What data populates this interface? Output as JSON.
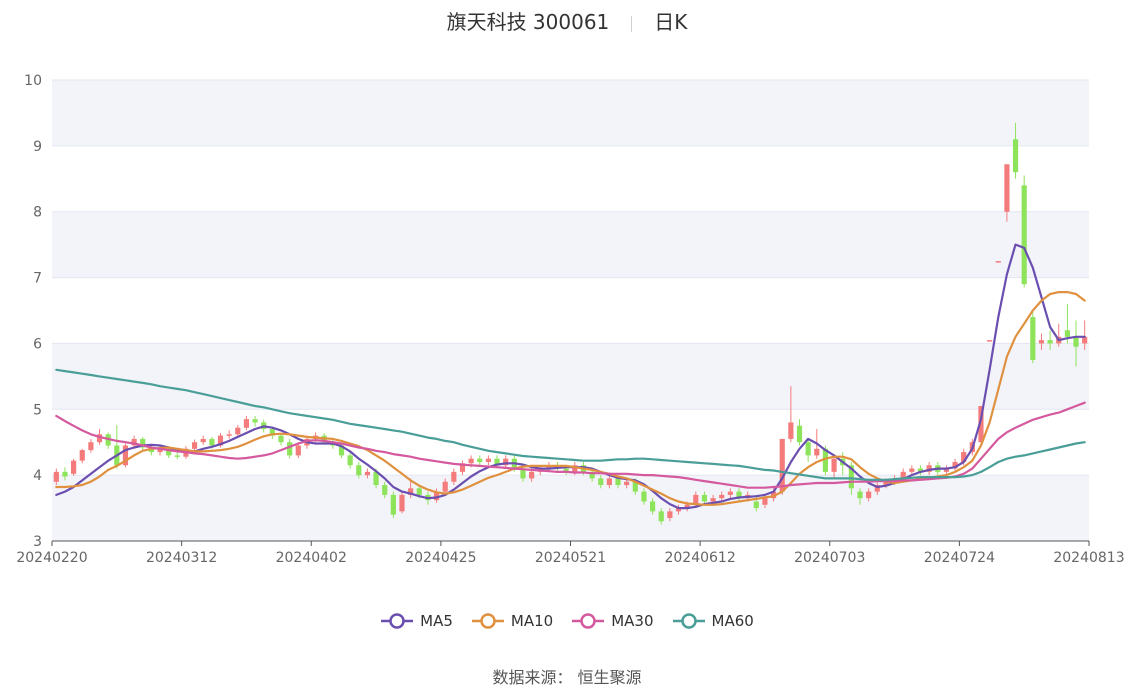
{
  "header": {
    "stock_title": "旗天科技 300061",
    "period": "日K"
  },
  "source_label": "数据来源： 恒生聚源",
  "chart_data": {
    "type": "candlestick",
    "title": "旗天科技 300061",
    "ylim": [
      3,
      10
    ],
    "yticks": [
      "3",
      "4",
      "5",
      "6",
      "7",
      "8",
      "9",
      "10"
    ],
    "xticks": [
      "20240220",
      "20240312",
      "20240402",
      "20240425",
      "20240521",
      "20240612",
      "20240703",
      "20240724",
      "20240813"
    ],
    "grid": true,
    "legend_position": "bottom",
    "colors": {
      "up": "#f47b7b",
      "down": "#8de35a"
    },
    "candles": [
      [
        3.9,
        4.05,
        4.1,
        3.85
      ],
      [
        4.05,
        3.98,
        4.12,
        3.92
      ],
      [
        4.02,
        4.22,
        4.25,
        3.99
      ],
      [
        4.22,
        4.38,
        4.4,
        4.18
      ],
      [
        4.38,
        4.5,
        4.55,
        4.34
      ],
      [
        4.5,
        4.62,
        4.7,
        4.46
      ],
      [
        4.62,
        4.45,
        4.65,
        4.4
      ],
      [
        4.45,
        4.15,
        4.76,
        4.1
      ],
      [
        4.15,
        4.45,
        4.48,
        4.12
      ],
      [
        4.45,
        4.55,
        4.6,
        4.4
      ],
      [
        4.55,
        4.42,
        4.58,
        4.38
      ],
      [
        4.42,
        4.35,
        4.46,
        4.3
      ],
      [
        4.35,
        4.4,
        4.45,
        4.3
      ],
      [
        4.4,
        4.3,
        4.44,
        4.26
      ],
      [
        4.3,
        4.28,
        4.36,
        4.24
      ],
      [
        4.28,
        4.4,
        4.44,
        4.25
      ],
      [
        4.4,
        4.5,
        4.54,
        4.36
      ],
      [
        4.5,
        4.55,
        4.6,
        4.46
      ],
      [
        4.55,
        4.45,
        4.58,
        4.4
      ],
      [
        4.45,
        4.6,
        4.64,
        4.42
      ],
      [
        4.6,
        4.62,
        4.68,
        4.55
      ],
      [
        4.62,
        4.72,
        4.76,
        4.58
      ],
      [
        4.72,
        4.85,
        4.9,
        4.68
      ],
      [
        4.85,
        4.8,
        4.9,
        4.74
      ],
      [
        4.8,
        4.7,
        4.84,
        4.65
      ],
      [
        4.7,
        4.6,
        4.74,
        4.55
      ],
      [
        4.6,
        4.5,
        4.64,
        4.45
      ],
      [
        4.5,
        4.3,
        4.55,
        4.25
      ],
      [
        4.3,
        4.45,
        4.5,
        4.26
      ],
      [
        4.45,
        4.55,
        4.6,
        4.4
      ],
      [
        4.55,
        4.6,
        4.65,
        4.5
      ],
      [
        4.6,
        4.5,
        4.64,
        4.46
      ],
      [
        4.5,
        4.45,
        4.54,
        4.4
      ],
      [
        4.45,
        4.3,
        4.5,
        4.26
      ],
      [
        4.3,
        4.15,
        4.35,
        4.1
      ],
      [
        4.15,
        4.0,
        4.2,
        3.95
      ],
      [
        4.0,
        4.05,
        4.1,
        3.95
      ],
      [
        4.05,
        3.85,
        4.1,
        3.8
      ],
      [
        3.85,
        3.7,
        3.9,
        3.65
      ],
      [
        3.7,
        3.4,
        3.75,
        3.35
      ],
      [
        3.45,
        3.7,
        3.75,
        3.42
      ],
      [
        3.7,
        3.8,
        3.95,
        3.65
      ],
      [
        3.8,
        3.7,
        3.85,
        3.65
      ],
      [
        3.7,
        3.62,
        3.75,
        3.55
      ],
      [
        3.62,
        3.75,
        3.8,
        3.58
      ],
      [
        3.75,
        3.9,
        3.95,
        3.7
      ],
      [
        3.9,
        4.05,
        4.1,
        3.85
      ],
      [
        4.05,
        4.18,
        4.22,
        4.0
      ],
      [
        4.18,
        4.25,
        4.3,
        4.12
      ],
      [
        4.25,
        4.2,
        4.3,
        4.15
      ],
      [
        4.2,
        4.25,
        4.3,
        4.15
      ],
      [
        4.25,
        4.15,
        4.3,
        4.1
      ],
      [
        4.15,
        4.25,
        4.3,
        4.1
      ],
      [
        4.25,
        4.1,
        4.3,
        4.05
      ],
      [
        4.1,
        3.95,
        4.15,
        3.9
      ],
      [
        3.95,
        4.05,
        4.1,
        3.9
      ],
      [
        4.05,
        4.1,
        4.15,
        4.0
      ],
      [
        4.1,
        4.15,
        4.2,
        4.05
      ],
      [
        4.15,
        4.1,
        4.2,
        4.05
      ],
      [
        4.1,
        4.05,
        4.15,
        4.0
      ],
      [
        4.05,
        4.15,
        4.2,
        4.0
      ],
      [
        4.15,
        4.05,
        4.2,
        4.0
      ],
      [
        4.05,
        3.95,
        4.1,
        3.9
      ],
      [
        3.95,
        3.85,
        4.0,
        3.8
      ],
      [
        3.85,
        3.95,
        4.0,
        3.8
      ],
      [
        3.95,
        3.85,
        4.0,
        3.8
      ],
      [
        3.85,
        3.9,
        3.95,
        3.8
      ],
      [
        3.9,
        3.75,
        3.95,
        3.7
      ],
      [
        3.75,
        3.6,
        3.8,
        3.55
      ],
      [
        3.6,
        3.45,
        3.65,
        3.4
      ],
      [
        3.45,
        3.3,
        3.5,
        3.25
      ],
      [
        3.35,
        3.45,
        3.5,
        3.3
      ],
      [
        3.45,
        3.5,
        3.55,
        3.4
      ],
      [
        3.5,
        3.55,
        3.6,
        3.45
      ],
      [
        3.55,
        3.7,
        3.75,
        3.5
      ],
      [
        3.7,
        3.6,
        3.75,
        3.55
      ],
      [
        3.6,
        3.65,
        3.7,
        3.55
      ],
      [
        3.65,
        3.7,
        3.75,
        3.6
      ],
      [
        3.7,
        3.75,
        3.8,
        3.65
      ],
      [
        3.75,
        3.65,
        3.8,
        3.6
      ],
      [
        3.65,
        3.7,
        3.75,
        3.6
      ],
      [
        3.6,
        3.5,
        3.7,
        3.45
      ],
      [
        3.55,
        3.65,
        3.7,
        3.5
      ],
      [
        3.65,
        3.75,
        3.8,
        3.6
      ],
      [
        3.75,
        4.55,
        4.55,
        3.7
      ],
      [
        4.55,
        4.8,
        5.35,
        4.5
      ],
      [
        4.75,
        4.5,
        4.85,
        4.45
      ],
      [
        4.5,
        4.3,
        4.55,
        4.2
      ],
      [
        4.3,
        4.4,
        4.7,
        4.25
      ],
      [
        4.4,
        4.05,
        4.45,
        4.0
      ],
      [
        4.05,
        4.25,
        4.3,
        3.95
      ],
      [
        4.25,
        4.15,
        4.35,
        4.0
      ],
      [
        4.15,
        3.8,
        4.2,
        3.7
      ],
      [
        3.75,
        3.65,
        3.8,
        3.55
      ],
      [
        3.65,
        3.75,
        3.8,
        3.6
      ],
      [
        3.75,
        3.85,
        3.9,
        3.7
      ],
      [
        3.85,
        3.9,
        3.95,
        3.8
      ],
      [
        3.9,
        3.95,
        4.0,
        3.85
      ],
      [
        3.95,
        4.05,
        4.1,
        3.9
      ],
      [
        4.05,
        4.1,
        4.15,
        4.0
      ],
      [
        4.1,
        4.05,
        4.15,
        4.0
      ],
      [
        4.05,
        4.15,
        4.2,
        4.0
      ],
      [
        4.15,
        4.05,
        4.2,
        4.0
      ],
      [
        4.05,
        4.1,
        4.15,
        4.0
      ],
      [
        4.1,
        4.2,
        4.25,
        4.05
      ],
      [
        4.2,
        4.35,
        4.4,
        4.15
      ],
      [
        4.35,
        4.5,
        4.55,
        4.3
      ],
      [
        4.5,
        5.05,
        5.05,
        4.5
      ],
      [
        6.05,
        6.05,
        6.05,
        6.05
      ],
      [
        7.25,
        7.25,
        7.25,
        7.25
      ],
      [
        8.0,
        8.72,
        8.72,
        7.85
      ],
      [
        9.1,
        8.6,
        9.35,
        8.5
      ],
      [
        8.4,
        6.9,
        8.55,
        6.85
      ],
      [
        6.4,
        5.75,
        6.5,
        5.7
      ],
      [
        6.0,
        6.05,
        6.15,
        5.9
      ],
      [
        6.05,
        6.0,
        6.2,
        5.9
      ],
      [
        6.0,
        6.1,
        6.3,
        5.95
      ],
      [
        6.2,
        6.1,
        6.6,
        6.0
      ],
      [
        6.1,
        5.95,
        6.35,
        5.65
      ],
      [
        6.0,
        6.1,
        6.35,
        5.9
      ]
    ],
    "series": [
      {
        "name": "MA5",
        "color": "#6a4fb0",
        "values": [
          3.7,
          3.75,
          3.82,
          3.92,
          4.02,
          4.12,
          4.22,
          4.3,
          4.38,
          4.42,
          4.45,
          4.46,
          4.45,
          4.42,
          4.38,
          4.35,
          4.36,
          4.4,
          4.43,
          4.47,
          4.52,
          4.58,
          4.64,
          4.7,
          4.74,
          4.72,
          4.68,
          4.62,
          4.55,
          4.5,
          4.48,
          4.48,
          4.48,
          4.44,
          4.36,
          4.25,
          4.16,
          4.06,
          3.95,
          3.82,
          3.75,
          3.72,
          3.68,
          3.65,
          3.66,
          3.7,
          3.78,
          3.88,
          3.98,
          4.06,
          4.12,
          4.16,
          4.18,
          4.18,
          4.16,
          4.12,
          4.1,
          4.1,
          4.11,
          4.12,
          4.12,
          4.12,
          4.1,
          4.05,
          4.0,
          3.96,
          3.94,
          3.92,
          3.86,
          3.76,
          3.65,
          3.56,
          3.5,
          3.5,
          3.52,
          3.56,
          3.58,
          3.6,
          3.64,
          3.66,
          3.67,
          3.68,
          3.7,
          3.75,
          3.95,
          4.2,
          4.4,
          4.55,
          4.48,
          4.38,
          4.3,
          4.2,
          4.1,
          3.98,
          3.88,
          3.82,
          3.84,
          3.88,
          3.94,
          4.0,
          4.05,
          4.08,
          4.1,
          4.1,
          4.12,
          4.2,
          4.4,
          4.85,
          5.6,
          6.4,
          7.05,
          7.5,
          7.45,
          7.15,
          6.7,
          6.25,
          6.05,
          6.08,
          6.1,
          6.1
        ]
      },
      {
        "name": "MA10",
        "color": "#e0913f",
        "values": [
          3.82,
          3.82,
          3.83,
          3.85,
          3.9,
          3.98,
          4.08,
          4.14,
          4.22,
          4.3,
          4.37,
          4.4,
          4.41,
          4.42,
          4.4,
          4.38,
          4.36,
          4.36,
          4.37,
          4.38,
          4.4,
          4.43,
          4.48,
          4.54,
          4.59,
          4.62,
          4.63,
          4.62,
          4.6,
          4.58,
          4.57,
          4.56,
          4.55,
          4.52,
          4.48,
          4.44,
          4.38,
          4.3,
          4.22,
          4.12,
          4.02,
          3.92,
          3.84,
          3.78,
          3.74,
          3.72,
          3.74,
          3.78,
          3.84,
          3.9,
          3.96,
          4.0,
          4.05,
          4.1,
          4.13,
          4.14,
          4.14,
          4.14,
          4.14,
          4.14,
          4.12,
          4.1,
          4.08,
          4.05,
          4.02,
          3.98,
          3.95,
          3.9,
          3.84,
          3.78,
          3.72,
          3.65,
          3.6,
          3.57,
          3.56,
          3.55,
          3.55,
          3.56,
          3.58,
          3.6,
          3.62,
          3.64,
          3.66,
          3.68,
          3.75,
          3.88,
          4.02,
          4.12,
          4.2,
          4.25,
          4.28,
          4.28,
          4.24,
          4.12,
          4.02,
          3.95,
          3.9,
          3.88,
          3.9,
          3.92,
          3.94,
          3.96,
          3.98,
          4.0,
          4.05,
          4.12,
          4.22,
          4.45,
          4.8,
          5.3,
          5.8,
          6.1,
          6.3,
          6.5,
          6.65,
          6.75,
          6.78,
          6.78,
          6.75,
          6.65
        ]
      },
      {
        "name": "MA30",
        "color": "#d4599e",
        "values": [
          4.9,
          4.82,
          4.75,
          4.68,
          4.62,
          4.58,
          4.55,
          4.52,
          4.5,
          4.48,
          4.45,
          4.42,
          4.4,
          4.38,
          4.36,
          4.35,
          4.33,
          4.32,
          4.3,
          4.28,
          4.26,
          4.25,
          4.26,
          4.28,
          4.3,
          4.33,
          4.38,
          4.43,
          4.48,
          4.52,
          4.53,
          4.52,
          4.5,
          4.48,
          4.45,
          4.42,
          4.4,
          4.37,
          4.35,
          4.32,
          4.3,
          4.28,
          4.25,
          4.23,
          4.21,
          4.19,
          4.17,
          4.16,
          4.15,
          4.14,
          4.13,
          4.12,
          4.11,
          4.1,
          4.09,
          4.08,
          4.07,
          4.06,
          4.05,
          4.05,
          4.04,
          4.04,
          4.03,
          4.03,
          4.02,
          4.02,
          4.02,
          4.01,
          4.0,
          4.0,
          3.99,
          3.98,
          3.97,
          3.95,
          3.93,
          3.91,
          3.89,
          3.87,
          3.85,
          3.83,
          3.81,
          3.81,
          3.81,
          3.82,
          3.83,
          3.85,
          3.86,
          3.87,
          3.88,
          3.88,
          3.88,
          3.89,
          3.9,
          3.9,
          3.9,
          3.91,
          3.91,
          3.91,
          3.92,
          3.92,
          3.93,
          3.94,
          3.95,
          3.96,
          3.98,
          4.02,
          4.1,
          4.25,
          4.4,
          4.55,
          4.65,
          4.72,
          4.78,
          4.84,
          4.88,
          4.92,
          4.95,
          5.0,
          5.05,
          5.1
        ]
      },
      {
        "name": "MA60",
        "color": "#4a9e98",
        "values": [
          5.6,
          5.58,
          5.56,
          5.54,
          5.52,
          5.5,
          5.48,
          5.46,
          5.44,
          5.42,
          5.4,
          5.38,
          5.35,
          5.33,
          5.31,
          5.29,
          5.26,
          5.23,
          5.2,
          5.17,
          5.14,
          5.11,
          5.08,
          5.05,
          5.03,
          5.0,
          4.97,
          4.94,
          4.92,
          4.9,
          4.88,
          4.86,
          4.84,
          4.81,
          4.78,
          4.76,
          4.74,
          4.72,
          4.7,
          4.68,
          4.66,
          4.63,
          4.6,
          4.57,
          4.55,
          4.52,
          4.5,
          4.46,
          4.43,
          4.4,
          4.37,
          4.35,
          4.33,
          4.31,
          4.29,
          4.28,
          4.27,
          4.26,
          4.25,
          4.24,
          4.23,
          4.22,
          4.22,
          4.22,
          4.23,
          4.24,
          4.24,
          4.25,
          4.25,
          4.24,
          4.23,
          4.22,
          4.21,
          4.2,
          4.19,
          4.18,
          4.17,
          4.16,
          4.15,
          4.14,
          4.12,
          4.1,
          4.08,
          4.07,
          4.05,
          4.03,
          4.01,
          3.99,
          3.97,
          3.95,
          3.95,
          3.95,
          3.95,
          3.94,
          3.93,
          3.93,
          3.93,
          3.94,
          3.95,
          3.96,
          3.97,
          3.97,
          3.97,
          3.97,
          3.97,
          3.98,
          4.0,
          4.05,
          4.12,
          4.2,
          4.25,
          4.28,
          4.3,
          4.33,
          4.36,
          4.39,
          4.42,
          4.45,
          4.48,
          4.5
        ]
      }
    ]
  }
}
